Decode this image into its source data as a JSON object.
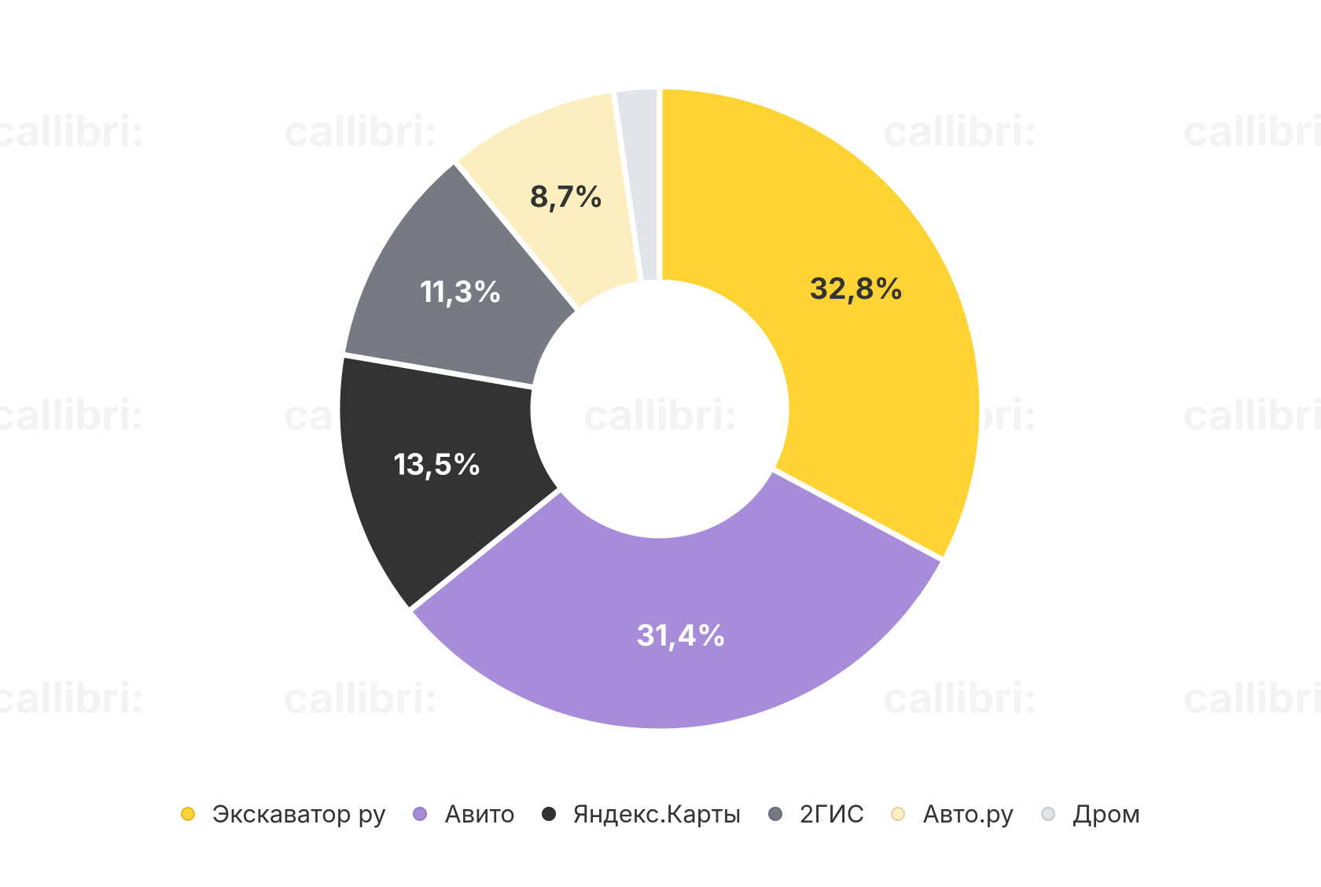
{
  "watermark": "callibri:",
  "chart_data": {
    "type": "donut",
    "categories": [
      "Экскаватор ру",
      "Авито",
      "Яндекс.Карты",
      "2ГИС",
      "Авто.ру",
      "Дром"
    ],
    "values": [
      32.8,
      31.4,
      13.5,
      11.3,
      8.7,
      2.3
    ],
    "value_labels": [
      "32,8%",
      "31,4%",
      "13,5%",
      "11,3%",
      "8,7%",
      null
    ],
    "colors": [
      "#fed334",
      "#a78cd9",
      "#333333",
      "#767b83",
      "#fdeebf",
      "#e1e5ea"
    ],
    "legend": "bottom"
  }
}
